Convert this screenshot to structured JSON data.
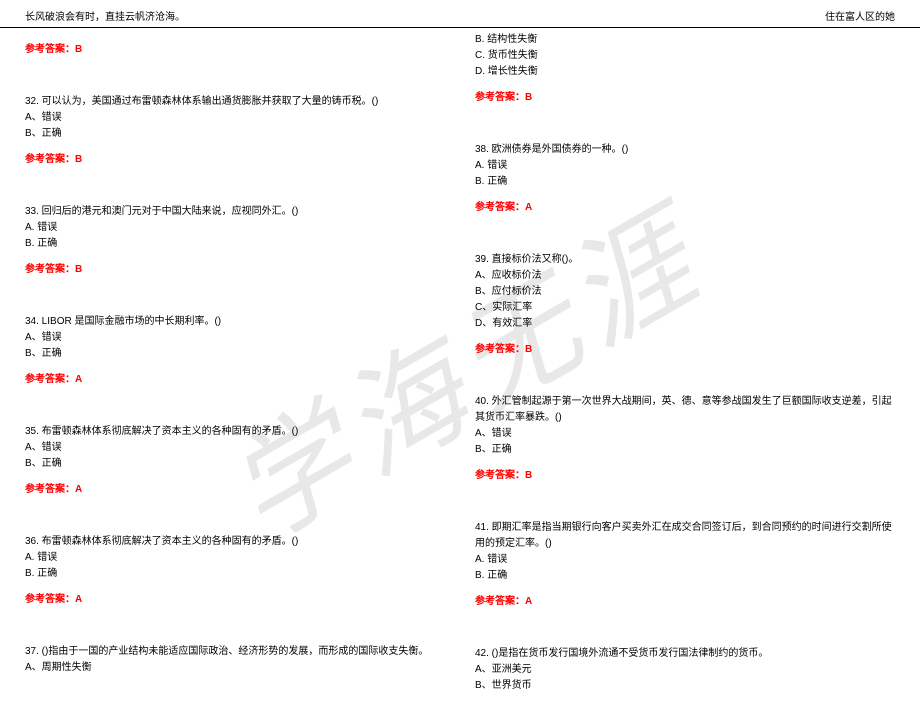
{
  "header": {
    "left": "长风破浪会有时，直挂云帆济沧海。",
    "right": "住在富人区的她"
  },
  "watermark": "学海无涯",
  "answer_label": "参考答案：",
  "answer_color": "#ff0000",
  "left_col": [
    {
      "type": "answer",
      "value": "B"
    },
    {
      "type": "question",
      "text": "32. 可以认为，美国通过布雷顿森林体系输出通货膨胀并获取了大量的铸币税。()",
      "options": [
        "A、错误",
        "B、正确"
      ],
      "answer": "B"
    },
    {
      "type": "question",
      "text": "33. 回归后的港元和澳门元对于中国大陆来说，应视同外汇。()",
      "options": [
        "A. 错误",
        "B. 正确"
      ],
      "answer": "B"
    },
    {
      "type": "question",
      "text": "34. LIBOR 是国际金融市场的中长期利率。()",
      "options": [
        "A、错误",
        "B、正确"
      ],
      "answer": "A"
    },
    {
      "type": "question",
      "text": "35. 布雷顿森林体系彻底解决了资本主义的各种固有的矛盾。()",
      "options": [
        "A、错误",
        "B、正确"
      ],
      "answer": "A"
    },
    {
      "type": "question",
      "text": "36. 布雷顿森林体系彻底解决了资本主义的各种固有的矛盾。()",
      "options": [
        "A. 错误",
        "B. 正确"
      ],
      "answer": "A"
    },
    {
      "type": "question_partial",
      "text": "37. ()指由于一国的产业结构未能适应国际政治、经济形势的发展，而形成的国际收支失衡。",
      "options": [
        "A、周期性失衡"
      ]
    }
  ],
  "right_col": [
    {
      "type": "options_cont",
      "options": [
        "B. 结构性失衡",
        "C. 货币性失衡",
        "D. 增长性失衡"
      ],
      "answer": "B"
    },
    {
      "type": "question",
      "text": "38. 欧洲债券是外国债券的一种。()",
      "options": [
        "A. 错误",
        "B. 正确"
      ],
      "answer": "A"
    },
    {
      "type": "question",
      "text": "39. 直接标价法又称()。",
      "options": [
        "A、应收标价法",
        "B、应付标价法",
        "C、实际汇率",
        "D、有效汇率"
      ],
      "answer": "B"
    },
    {
      "type": "question",
      "text": "40. 外汇管制起源于第一次世界大战期间，英、德、意等参战国发生了巨额国际收支逆差，引起其货币汇率暴跌。()",
      "options": [
        "A、错误",
        "B、正确"
      ],
      "answer": "B"
    },
    {
      "type": "question",
      "text": "41. 即期汇率是指当期银行向客户买卖外汇在成交合同签订后，到合同预约的时间进行交割所使用的预定汇率。()",
      "options": [
        "A. 错误",
        "B. 正确"
      ],
      "answer": "A"
    },
    {
      "type": "question_partial",
      "text": "42. ()是指在货币发行国境外流通不受货币发行国法律制约的货币。",
      "options": [
        "A、亚洲美元",
        "B、世界货币"
      ]
    }
  ]
}
